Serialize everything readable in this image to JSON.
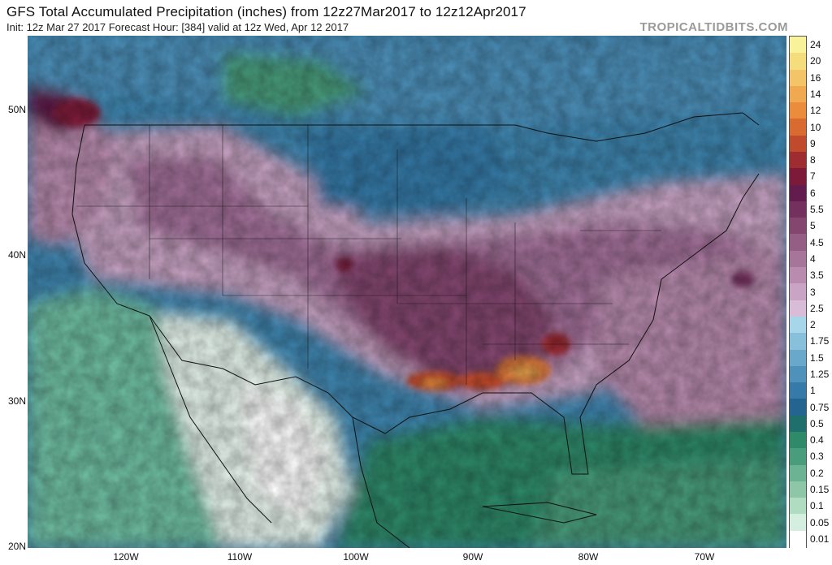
{
  "header": {
    "title": "GFS Total Accumulated Precipitation (inches) from 12z27Mar2017 to 12z12Apr2017",
    "subtitle": "Init: 12z Mar 27 2017   Forecast Hour: [384]   valid at 12z Wed, Apr 12 2017",
    "credit": "TROPICALTIDBITS.COM"
  },
  "axes": {
    "lat_labels": [
      "50N",
      "40N",
      "30N",
      "20N"
    ],
    "lon_labels": [
      "120W",
      "110W",
      "100W",
      "90W",
      "80W",
      "70W"
    ]
  },
  "legend": {
    "labels": [
      "24",
      "20",
      "16",
      "14",
      "12",
      "10",
      "9",
      "8",
      "7",
      "6",
      "5.5",
      "5",
      "4.5",
      "4",
      "3.5",
      "3",
      "2.5",
      "2",
      "1.75",
      "1.5",
      "1.25",
      "1",
      "0.75",
      "0.5",
      "0.4",
      "0.3",
      "0.2",
      "0.15",
      "0.1",
      "0.05",
      "0.01"
    ],
    "colors": [
      "#f8f29a",
      "#f5dc7c",
      "#f3c468",
      "#f0a950",
      "#ea8c3c",
      "#d96a30",
      "#c04a2c",
      "#9e2c30",
      "#7d1a3a",
      "#641b4e",
      "#74305f",
      "#84466f",
      "#955e84",
      "#a67599",
      "#b98caf",
      "#c9a4c5",
      "#d8bcd8",
      "#a7d5ea",
      "#88bfdb",
      "#6aa8cb",
      "#4e91bb",
      "#357aa8",
      "#246491",
      "#1f6f6c",
      "#2f8a6a",
      "#4a9d7c",
      "#6cb393",
      "#8dc7a8",
      "#b0dcc2",
      "#d4efe0",
      "#ffffff"
    ]
  },
  "map_regions": {
    "pacific_ocean": "#6fc0a4",
    "canada_west": "#3f86b0",
    "great_plains_rain": "#a27099",
    "gulf_coast_heavy": "#d9773a",
    "northern_plains": "#2a6a8f",
    "mexico_dry": "#ffffff",
    "gulf_of_mexico": "#2f8a6a",
    "atlantic": "#b98caf"
  }
}
